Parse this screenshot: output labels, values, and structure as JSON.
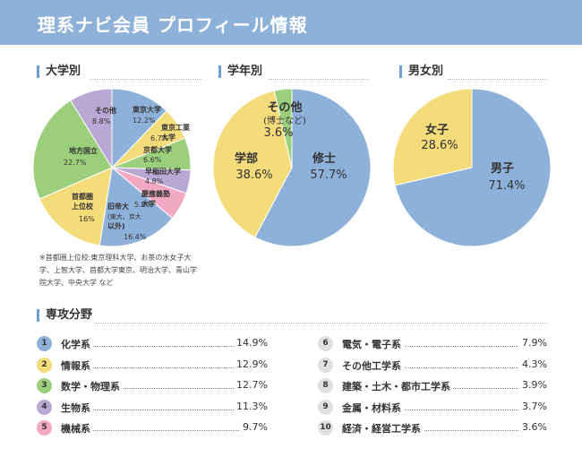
{
  "header": {
    "title": "理系ナビ会員 プロフィール情報"
  },
  "colors": {
    "header_bg": "#8db1d9",
    "blue": "#8db1d9",
    "yellow": "#f5dc7a",
    "green": "#9ccf7c",
    "purple": "#b9a8d4",
    "pink": "#f3a8c4"
  },
  "chart_data": [
    {
      "type": "pie",
      "title": "大学別",
      "slices": [
        {
          "label_lines": [
            "東京大学"
          ],
          "value_text": "12.2%",
          "value": 12.2,
          "color": "#8db1d9"
        },
        {
          "label_lines": [
            "東京工業",
            "大学"
          ],
          "value_text": "6.7%",
          "value": 6.7,
          "color": "#f5dc7a"
        },
        {
          "label_lines": [
            "京都大学"
          ],
          "value_text": "6.6%",
          "value": 6.6,
          "color": "#9ccf7c"
        },
        {
          "label_lines": [
            "早稲田大学"
          ],
          "value_text": "4.8%",
          "value": 4.8,
          "color": "#b9a8d4"
        },
        {
          "label_lines": [
            "慶應義塾",
            "大学"
          ],
          "value_text": "5.8%",
          "value": 5.8,
          "color": "#f3a8c4"
        },
        {
          "label_lines": [
            "旧帝大",
            "(東大、京大",
            "以外)"
          ],
          "value_text": "16.4%",
          "value": 16.4,
          "color": "#8db1d9"
        },
        {
          "label_lines": [
            "首都圏",
            "上位校"
          ],
          "value_text": "16%",
          "value": 16,
          "color": "#f5dc7a"
        },
        {
          "label_lines": [
            "地方国立"
          ],
          "value_text": "22.7%",
          "value": 22.7,
          "color": "#9ccf7c"
        },
        {
          "label_lines": [
            "その他"
          ],
          "value_text": "8.8%",
          "value": 8.8,
          "color": "#b9a8d4"
        }
      ],
      "note": "※首都圏上位校:東京理科大学、お茶の水女子大学、上智大学、首都大学東京、明治大学、青山学院大学、中央大学 など"
    },
    {
      "type": "pie",
      "title": "学年別",
      "slices": [
        {
          "label_lines": [
            "修士"
          ],
          "value_text": "57.7%",
          "value": 57.7,
          "color": "#8db1d9"
        },
        {
          "label_lines": [
            "学部"
          ],
          "value_text": "38.6%",
          "value": 38.6,
          "color": "#f5dc7a"
        },
        {
          "label_lines": [
            "その他",
            "(博士など)"
          ],
          "value_text": "3.6%",
          "value": 3.6,
          "color": "#9ccf7c"
        }
      ]
    },
    {
      "type": "pie",
      "title": "男女別",
      "slices": [
        {
          "label_lines": [
            "男子"
          ],
          "value_text": "71.4%",
          "value": 71.4,
          "color": "#8db1d9"
        },
        {
          "label_lines": [
            "女子"
          ],
          "value_text": "28.6%",
          "value": 28.6,
          "color": "#f5dc7a"
        }
      ]
    },
    {
      "type": "table",
      "title": "専攻分野",
      "rows": [
        {
          "num": "1",
          "label": "化学系",
          "value": "14.9%",
          "color": "#8db1d9"
        },
        {
          "num": "2",
          "label": "情報系",
          "value": "12.9%",
          "color": "#f5dc7a"
        },
        {
          "num": "3",
          "label": "数学・物理系",
          "value": "12.7%",
          "color": "#9ccf7c"
        },
        {
          "num": "4",
          "label": "生物系",
          "value": "11.3%",
          "color": "#b9a8d4"
        },
        {
          "num": "5",
          "label": "機械系",
          "value": "9.7%",
          "color": "#f3a8c4"
        },
        {
          "num": "6",
          "label": "電気・電子系",
          "value": "7.9%",
          "color": "#e0e0e0"
        },
        {
          "num": "7",
          "label": "その他工学系",
          "value": "4.3%",
          "color": "#e0e0e0"
        },
        {
          "num": "8",
          "label": "建築・土木・都市工学系",
          "value": "3.9%",
          "color": "#e0e0e0"
        },
        {
          "num": "9",
          "label": "金属・材料系",
          "value": "3.7%",
          "color": "#e0e0e0"
        },
        {
          "num": "10",
          "label": "経済・経営工学系",
          "value": "3.6%",
          "color": "#e0e0e0"
        }
      ]
    }
  ]
}
